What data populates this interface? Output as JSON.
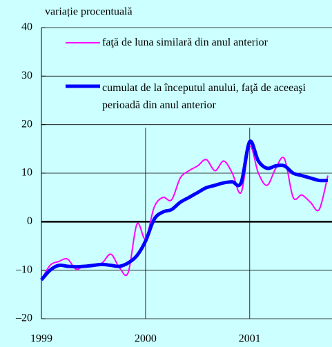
{
  "chart_data": {
    "type": "line",
    "y_label": "variație procentuală",
    "x": [
      1999,
      1999.083,
      1999.167,
      1999.25,
      1999.333,
      1999.417,
      1999.5,
      1999.583,
      1999.667,
      1999.75,
      1999.833,
      1999.917,
      2000,
      2000.083,
      2000.167,
      2000.25,
      2000.333,
      2000.417,
      2000.5,
      2000.583,
      2000.667,
      2000.75,
      2000.833,
      2000.917,
      2001,
      2001.083,
      2001.167,
      2001.25,
      2001.333,
      2001.417,
      2001.5,
      2001.583,
      2001.667,
      2001.75
    ],
    "series": [
      {
        "name": "faţă de luna similară din anul anterior",
        "color": "#ff00ff",
        "values": [
          -12,
          -9,
          -8.2,
          -7.7,
          -9.8,
          -9,
          -9,
          -8.5,
          -6.7,
          -9.5,
          -10.5,
          -0.5,
          -3.5,
          3,
          5,
          4.5,
          9,
          10.5,
          11.5,
          12.8,
          10.5,
          12.5,
          10,
          6,
          15.5,
          10,
          7.5,
          11,
          13,
          5,
          5.5,
          4,
          2.5,
          9.5
        ]
      },
      {
        "name": "cumulat de la începutul anului, faţă de aceeaşi perioadă din anul anterior",
        "color": "#0000ff",
        "values": [
          -12,
          -10,
          -9,
          -9.2,
          -9.3,
          -9.2,
          -9,
          -8.8,
          -9,
          -9.2,
          -8.5,
          -7,
          -4,
          0.5,
          2,
          2.5,
          4,
          5,
          6,
          7,
          7.5,
          8,
          8.2,
          8,
          16.5,
          12.5,
          11,
          11.5,
          11.5,
          10,
          9.5,
          9,
          8.5,
          8.5
        ]
      }
    ],
    "xlim": [
      1999,
      2001.79
    ],
    "xticks": [
      1999,
      2000,
      2001
    ],
    "ylim": [
      -20,
      40
    ],
    "yticks": [
      {
        "value": -20,
        "label": "–20"
      },
      {
        "value": -10,
        "label": "–10"
      },
      0,
      10,
      20,
      30,
      40
    ],
    "grid": true
  }
}
